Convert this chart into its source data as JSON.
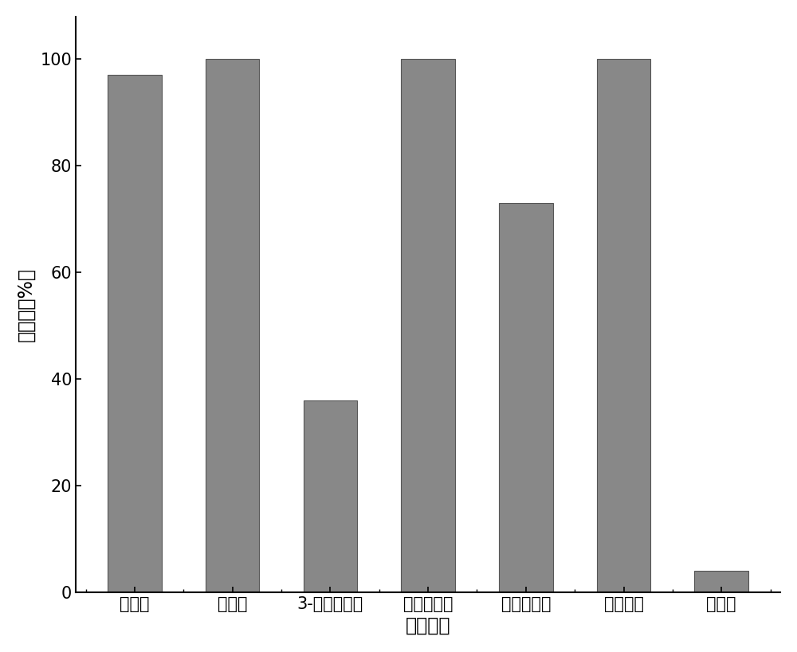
{
  "categories": [
    "多菌灵",
    "克百威",
    "3-羟基克百威",
    "氯氟氰菊酯",
    "苯醚甲环唠",
    "烯酰吗啊",
    "吵虫啊"
  ],
  "values": [
    97,
    100,
    36,
    100,
    73,
    100,
    4
  ],
  "bar_color": "#888888",
  "bar_edge_color": "#555555",
  "xlabel": "农药名称",
  "ylabel": "降解率（%）",
  "ylim": [
    0,
    108
  ],
  "yticks": [
    0,
    20,
    40,
    60,
    80,
    100
  ],
  "background_color": "#ffffff",
  "bar_width": 0.55,
  "tick_fontsize": 15,
  "label_fontsize": 17,
  "spine_linewidth": 1.5
}
